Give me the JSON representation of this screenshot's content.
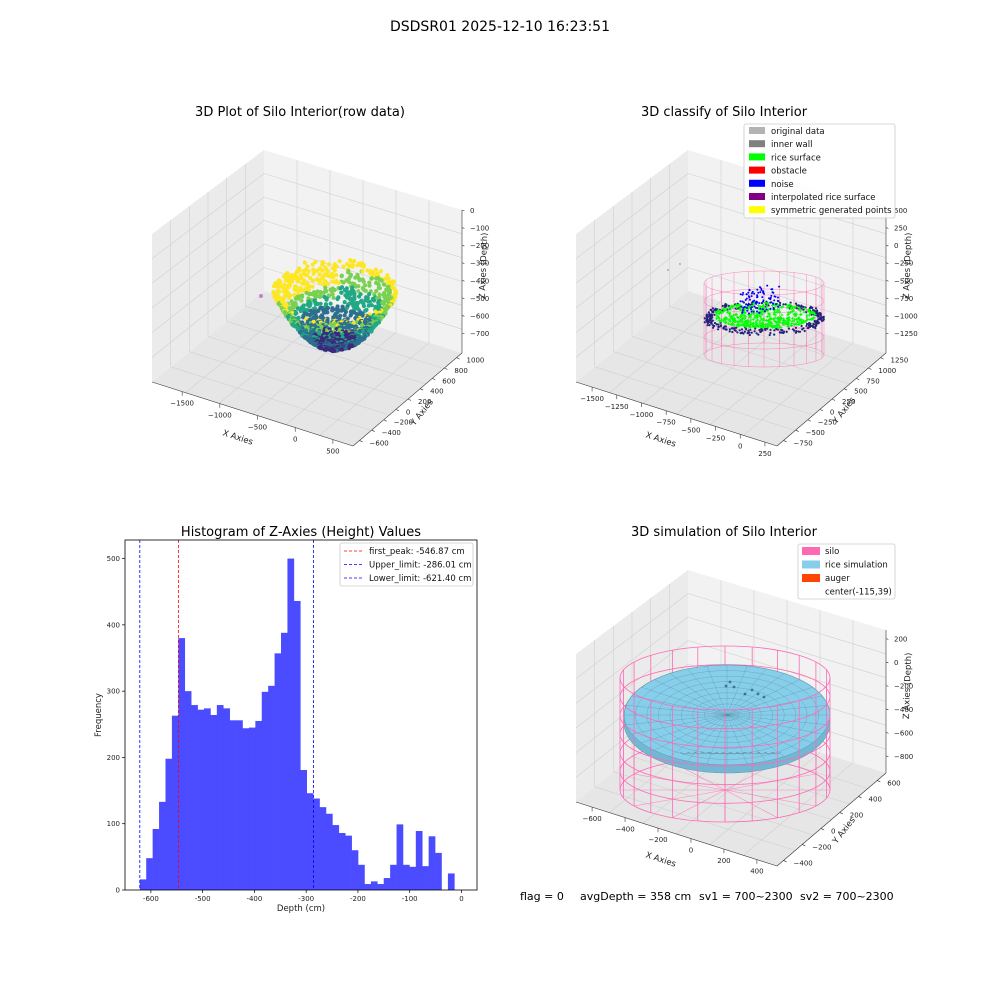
{
  "figure": {
    "title": "DSDSR01 2025-12-10 16:23:51",
    "status": {
      "flag": "flag = 0",
      "avg_depth": "avgDepth = 358 cm",
      "sv1": "sv1 = 700~2300",
      "sv2": "sv2 = 700~2300"
    }
  },
  "chart_data": [
    {
      "type": "scatter",
      "subtype": "3d",
      "title": "3D Plot of Silo Interior(row data)",
      "xlabel": "X Axies",
      "ylabel": "Y Axies",
      "zlabel": "Z Axies (Depth)",
      "x_ticks": [
        "−1500",
        "−1000",
        "−500",
        "0",
        "500"
      ],
      "y_ticks": [
        "−600",
        "−400",
        "−200",
        "0",
        "200",
        "400",
        "600",
        "800",
        "1000"
      ],
      "z_ticks": [
        "0",
        "−100",
        "−200",
        "−300",
        "−400",
        "−500",
        "−600",
        "−700"
      ],
      "colormap": [
        "#3b2a7a",
        "#2c6f8e",
        "#22a884",
        "#7ad151",
        "#fde725"
      ]
    },
    {
      "type": "scatter",
      "subtype": "3d",
      "title": "3D classify of Silo Interior",
      "zlabel": "Z Axies (Depth)",
      "xlabel": "X Axies",
      "ylabel": "Y Axies",
      "x_ticks": [
        "−1500",
        "−1250",
        "−1000",
        "−750",
        "−500",
        "−250",
        "0",
        "250"
      ],
      "y_ticks": [
        "−750",
        "−500",
        "−250",
        "0",
        "250",
        "500",
        "750",
        "1000",
        "1250"
      ],
      "z_ticks": [
        "500",
        "250",
        "0",
        "−250",
        "−500",
        "−750",
        "−1000",
        "−1250"
      ],
      "legend_position": "top-right",
      "legend": [
        {
          "label": "original data",
          "color": "#b3b3b3"
        },
        {
          "label": "inner wall",
          "color": "#808080"
        },
        {
          "label": "rice surface",
          "color": "#00ff00"
        },
        {
          "label": "obstacle",
          "color": "#ff0000"
        },
        {
          "label": "noise",
          "color": "#0000ff"
        },
        {
          "label": "interpolated rice surface",
          "color": "#800080"
        },
        {
          "label": "symmetric generated points",
          "color": "#ffff00"
        }
      ]
    },
    {
      "type": "bar",
      "subtype": "histogram",
      "title": "Histogram of Z-Axies (Height) Values",
      "xlabel": "Depth (cm)",
      "ylabel": "Frequency",
      "xlim": [
        -650,
        30
      ],
      "ylim": [
        0,
        528
      ],
      "x_ticks": [
        -600,
        -500,
        -400,
        -300,
        -200,
        -100,
        0
      ],
      "y_ticks": [
        0,
        100,
        200,
        300,
        400,
        500
      ],
      "bar_color": "#4b4bff",
      "bin_start": -621.4,
      "bin_width": 12.4,
      "values": [
        16,
        48,
        92,
        133,
        198,
        263,
        380,
        300,
        279,
        272,
        274,
        264,
        279,
        274,
        256,
        256,
        244,
        245,
        255,
        299,
        308,
        357,
        388,
        500,
        436,
        181,
        146,
        138,
        125,
        115,
        98,
        86,
        82,
        60,
        38,
        9,
        13,
        9,
        18,
        38,
        99,
        38,
        35,
        89,
        36,
        81,
        56,
        0,
        25
      ],
      "vlines": [
        {
          "label": "first_peak: -546.87 cm",
          "x": -546.87,
          "color": "#ff0000"
        },
        {
          "label": "Upper_limit: -286.01 cm",
          "x": -286.01,
          "color": "#0000ff"
        },
        {
          "label": "Lower_limit: -621.40 cm",
          "x": -621.4,
          "color": "#0000ff"
        }
      ],
      "legend_position": "top-right"
    },
    {
      "type": "scatter",
      "subtype": "3d-surface",
      "title": "3D simulation of Silo Interior",
      "xlabel": "X Axies",
      "ylabel": "Y Axies",
      "zlabel": "Z Axies (Depth)",
      "x_ticks": [
        "−600",
        "−400",
        "−200",
        "0",
        "200",
        "400"
      ],
      "y_ticks": [
        "−400",
        "−200",
        "0",
        "200",
        "400",
        "600"
      ],
      "z_ticks": [
        "200",
        "0",
        "−200",
        "−400",
        "−600",
        "−800"
      ],
      "legend_position": "top-right",
      "legend": [
        {
          "label": "silo",
          "color": "#ff69b4"
        },
        {
          "label": "rice simulation",
          "color": "#87ceeb"
        },
        {
          "label": "auger",
          "color": "#ff4500"
        },
        {
          "label": "center(-115,39)",
          "color": "none"
        }
      ]
    }
  ]
}
